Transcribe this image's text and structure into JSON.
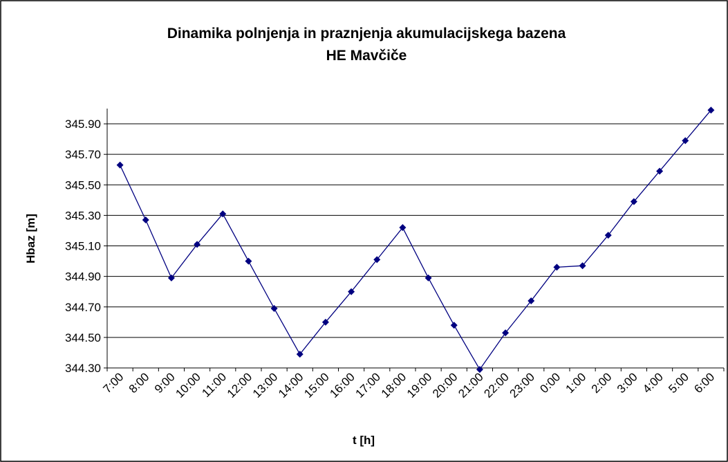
{
  "chart_data": {
    "type": "line",
    "title": [
      "Dinamika polnjenja in praznjenja akumulacijskega bazena",
      "HE Mavčiče"
    ],
    "x_label": "t [h]",
    "y_label": "Hbaz [m]",
    "categories": [
      "7:00",
      "8:00",
      "9:00",
      "10:00",
      "11:00",
      "12:00",
      "13:00",
      "14:00",
      "15:00",
      "16:00",
      "17:00",
      "18:00",
      "19:00",
      "20:00",
      "21:00",
      "22:00",
      "23:00",
      "0:00",
      "1:00",
      "2:00",
      "3:00",
      "4:00",
      "5:00",
      "6:00"
    ],
    "series": [
      {
        "name": "Hbaz",
        "color": "#000080",
        "values": [
          345.63,
          345.27,
          344.89,
          345.11,
          345.31,
          345.0,
          344.69,
          344.39,
          344.6,
          344.8,
          345.01,
          345.22,
          344.89,
          344.58,
          344.29,
          344.53,
          344.74,
          344.96,
          344.97,
          345.17,
          345.39,
          345.59,
          345.79,
          345.99
        ]
      }
    ],
    "ylim": [
      344.3,
      346.0
    ],
    "yticks": [
      {
        "value": 344.3,
        "label": "344.30"
      },
      {
        "value": 344.5,
        "label": "344.50"
      },
      {
        "value": 344.7,
        "label": "344.70"
      },
      {
        "value": 344.9,
        "label": "344.90"
      },
      {
        "value": 345.1,
        "label": "345.10"
      },
      {
        "value": 345.3,
        "label": "345.30"
      },
      {
        "value": 345.5,
        "label": "345.50"
      },
      {
        "value": 345.7,
        "label": "345.70"
      },
      {
        "value": 345.9,
        "label": "345.90"
      }
    ],
    "grid": true
  }
}
